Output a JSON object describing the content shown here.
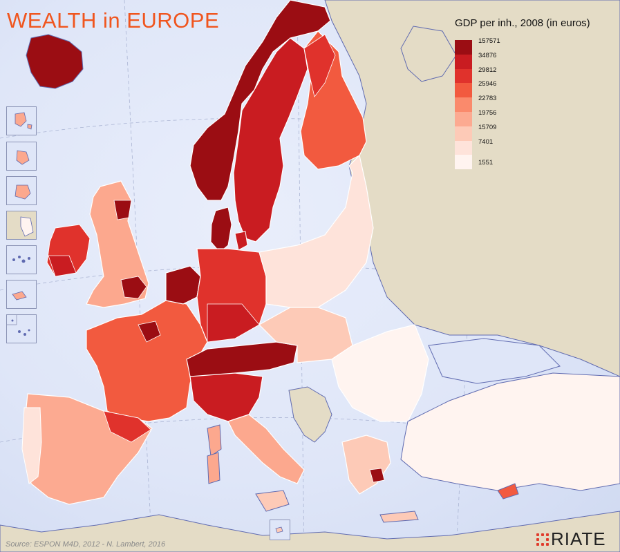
{
  "title": "WEALTH in EUROPE",
  "legend": {
    "title": "GDP per inh., 2008 (in euros)",
    "breaks": [
      "157571",
      "34876",
      "29812",
      "25946",
      "22783",
      "19756",
      "15709",
      "7401",
      "1551"
    ],
    "colors": [
      "#9b0d13",
      "#c91c21",
      "#e0322c",
      "#f25a3f",
      "#fa8a6c",
      "#fcaa91",
      "#fdcab7",
      "#fee3da",
      "#fff4f0"
    ]
  },
  "source": "Source: ESPON M4D, 2012 - N. Lambert, 2016",
  "logo": "RIATE",
  "colors": {
    "sea": "#dfe6f8",
    "nodata": "#e4dcc6",
    "border": "#ffffff",
    "coast": "#5f6ab0"
  }
}
